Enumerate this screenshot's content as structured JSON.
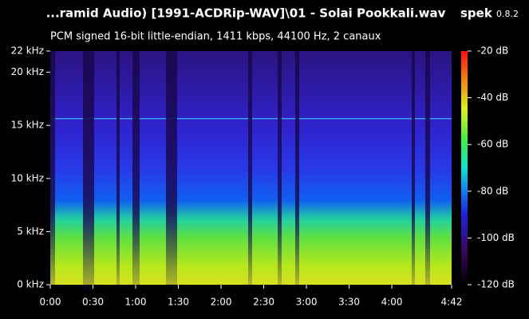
{
  "chart_data": {
    "type": "spectrogram",
    "title": "...ramid Audio) [1991-ACDRip-WAV]\\01 - Solai Pookkali.wav",
    "app_name": "spek",
    "app_version": "0.8.2",
    "subtitle": "PCM signed 16-bit little-endian, 1411 kbps, 44100 Hz, 2 canaux",
    "xlim": [
      0,
      282
    ],
    "xticks": [
      {
        "value": 0,
        "label": "0:00"
      },
      {
        "value": 30,
        "label": "0:30"
      },
      {
        "value": 60,
        "label": "1:00"
      },
      {
        "value": 90,
        "label": "1:30"
      },
      {
        "value": 120,
        "label": "2:00"
      },
      {
        "value": 150,
        "label": "2:30"
      },
      {
        "value": 180,
        "label": "3:00"
      },
      {
        "value": 210,
        "label": "3:30"
      },
      {
        "value": 240,
        "label": "4:00"
      },
      {
        "value": 282,
        "label": "4:42"
      }
    ],
    "ylim": [
      0,
      22
    ],
    "yticks": [
      {
        "value": 0,
        "label": "0 kHz"
      },
      {
        "value": 5,
        "label": "5 kHz"
      },
      {
        "value": 10,
        "label": "10 kHz"
      },
      {
        "value": 15,
        "label": "15 kHz"
      },
      {
        "value": 20,
        "label": "20 kHz"
      },
      {
        "value": 22,
        "label": "22 kHz"
      }
    ],
    "zlim": [
      -120,
      -20
    ],
    "zticks": [
      {
        "value": -120,
        "label": "-120 dB"
      },
      {
        "value": -100,
        "label": "-100 dB"
      },
      {
        "value": -80,
        "label": "-80 dB"
      },
      {
        "value": -60,
        "label": "-60 dB"
      },
      {
        "value": -40,
        "label": "-40 dB"
      },
      {
        "value": -20,
        "label": "-20 dB"
      }
    ]
  }
}
